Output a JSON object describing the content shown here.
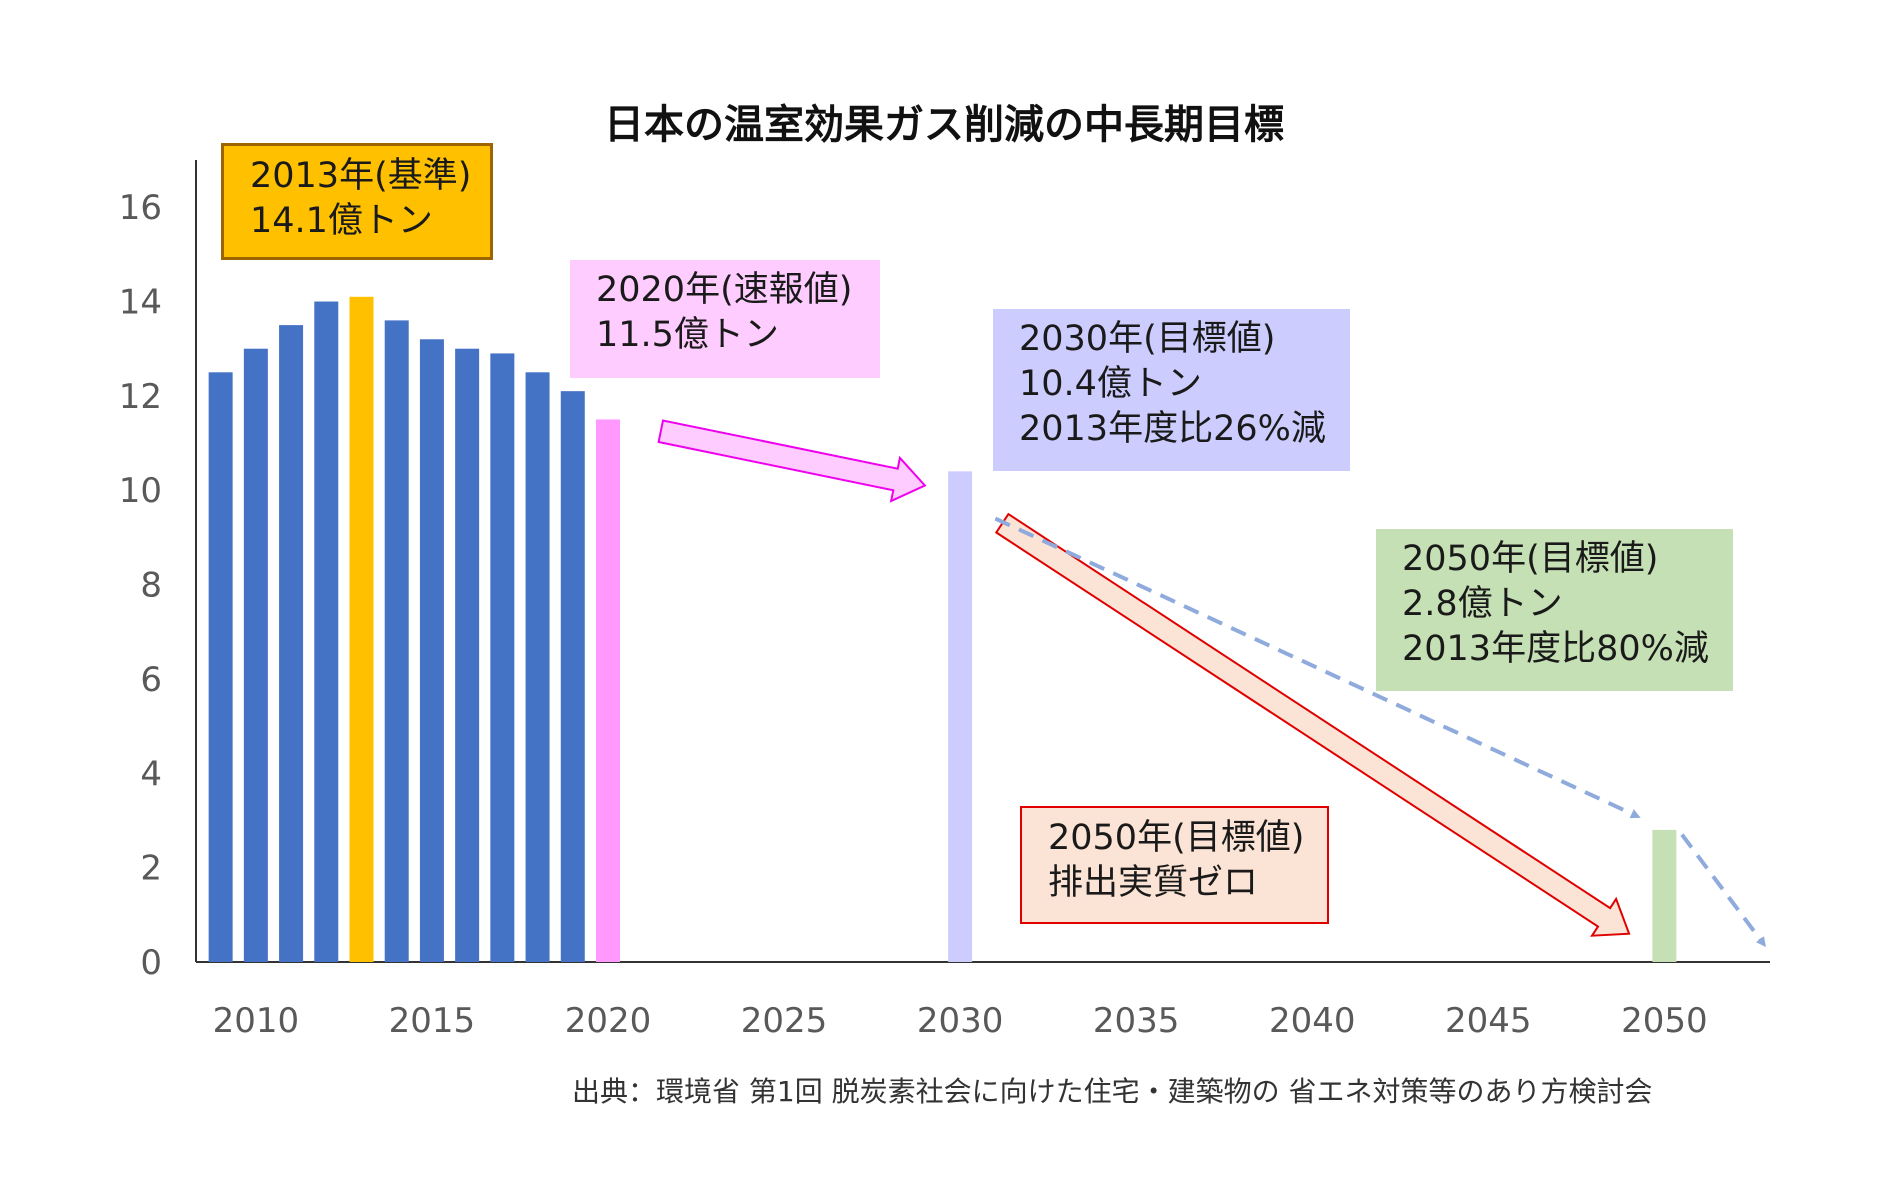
{
  "title": "日本の温室効果ガス削減の中長期目標",
  "source": "出典：環境省 第1回 脱炭素社会に向けた住宅・建築物の 省エネ対策等のあり方検討会",
  "annotations": {
    "base_2013": {
      "line1": "2013年(基準)",
      "line2": "14.1億トン",
      "color": "#ffc000"
    },
    "flash_2020": {
      "line1": "2020年(速報値)",
      "line2": "11.5億トン",
      "color": "#ffccff"
    },
    "target_2030": {
      "line1": "2030年(目標値)",
      "line2": "10.4億トン",
      "line3": "2013年度比26%減",
      "color": "#ccccff"
    },
    "target_2050_green": {
      "line1": "2050年(目標値)",
      "line2": "2.8億トン",
      "line3": "2013年度比80%減",
      "color": "#c5e0b4"
    },
    "target_2050_red": {
      "line1": "2050年(目標値)",
      "line2": "排出実質ゼロ",
      "color": "#fbe4d5"
    }
  },
  "chart_data": {
    "type": "bar",
    "x": [
      2009,
      2010,
      2011,
      2012,
      2013,
      2014,
      2015,
      2016,
      2017,
      2018,
      2019,
      2020,
      2030,
      2050
    ],
    "values": [
      12.5,
      13.0,
      13.5,
      14.0,
      14.1,
      13.6,
      13.2,
      13.0,
      12.9,
      12.5,
      12.1,
      11.5,
      10.4,
      2.8
    ],
    "colors": [
      "#4472c4",
      "#4472c4",
      "#4472c4",
      "#4472c4",
      "#ffc000",
      "#4472c4",
      "#4472c4",
      "#4472c4",
      "#4472c4",
      "#4472c4",
      "#4472c4",
      "#ff99ff",
      "#ccccff",
      "#c5e0b4"
    ],
    "xlim": [
      2008.3,
      2053
    ],
    "ylim": [
      0,
      17
    ],
    "xticks": [
      "2010",
      "2015",
      "2020",
      "2025",
      "2030",
      "2035",
      "2040",
      "2045",
      "2050"
    ],
    "yticks": [
      "0",
      "2",
      "4",
      "6",
      "8",
      "10",
      "12",
      "14",
      "16"
    ],
    "grid": false,
    "legend": "none"
  }
}
